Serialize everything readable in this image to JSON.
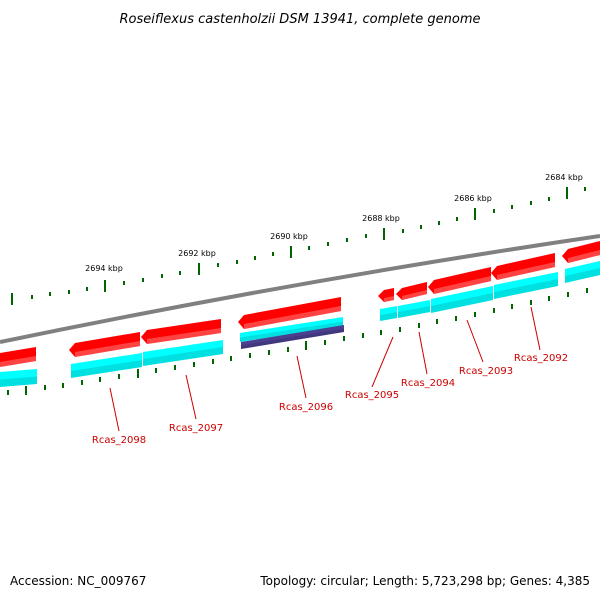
{
  "title": "Roseiflexus castenholzii DSM 13941, complete genome",
  "footer": {
    "accession": "Accession: NC_009767",
    "summary": "Topology: circular; Length: 5,723,298 bp; Genes: 4,385"
  },
  "kbp_ticks": [
    {
      "label": "2684 kbp"
    },
    {
      "label": "2686 kbp"
    },
    {
      "label": "2688 kbp"
    },
    {
      "label": "2690 kbp"
    },
    {
      "label": "2692 kbp"
    },
    {
      "label": "2694 kbp"
    }
  ],
  "genes": [
    {
      "label": "Rcas_2092"
    },
    {
      "label": "Rcas_2093"
    },
    {
      "label": "Rcas_2094"
    },
    {
      "label": "Rcas_2095"
    },
    {
      "label": "Rcas_2096"
    },
    {
      "label": "Rcas_2097"
    },
    {
      "label": "Rcas_2098"
    }
  ],
  "colors": {
    "backbone": "#808080",
    "gene_forward": "#ff0000",
    "cds": "#00ffff",
    "special_cds": "#4b3f8f",
    "gc_ticks": "#006400",
    "label": "#cc0000"
  }
}
